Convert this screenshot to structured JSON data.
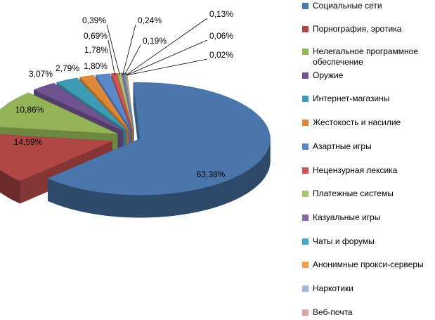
{
  "chart_data": {
    "type": "pie",
    "title": "",
    "categories": [
      "Социальные сети",
      "Порнография, эротика",
      "Нелегальное программное обеспечение",
      "Оружие",
      "Интернет-магазины",
      "Жестокость и насилие",
      "Азартные игры",
      "Нецензурная лексика",
      "Платежные системы",
      "Казуальные игры",
      "Чаты и форумы",
      "Анонимные прокси-серверы",
      "Наркотики",
      "Веб-почта"
    ],
    "values": [
      63.38,
      14.59,
      10.86,
      3.07,
      2.79,
      1.8,
      1.78,
      0.69,
      0.39,
      0.24,
      0.19,
      0.13,
      0.06,
      0.02
    ],
    "labels": [
      "63,38%",
      "14,59%",
      "10,86%",
      "3,07%",
      "2,79%",
      "1,80%",
      "1,78%",
      "0,69%",
      "0,39%",
      "0,24%",
      "0,19%",
      "0,13%",
      "0,06%",
      "0,02%"
    ],
    "colors": [
      "#4a76ab",
      "#b04745",
      "#93b456",
      "#6f528f",
      "#3e9bb4",
      "#dd8738",
      "#5b88c9",
      "#cd5753",
      "#a8c667",
      "#8868a8",
      "#48acc6",
      "#f29c48",
      "#a1b6d9",
      "#d9a3a2"
    ],
    "exploded": true,
    "style": "3d",
    "legend_position": "right"
  }
}
